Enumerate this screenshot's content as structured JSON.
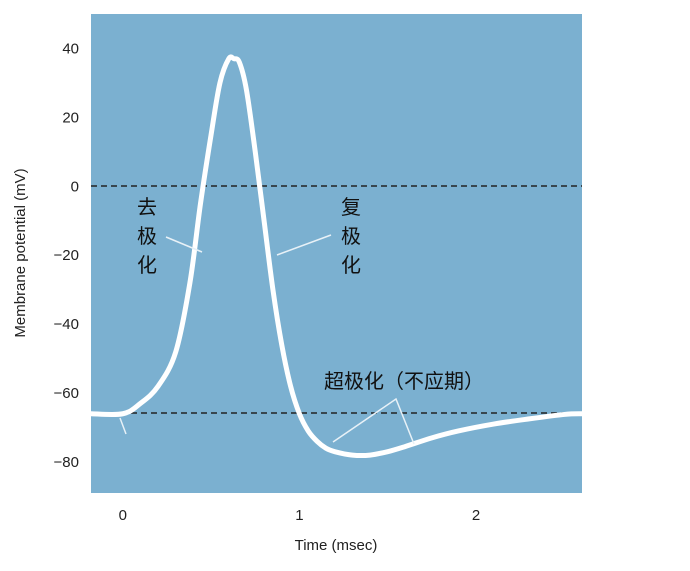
{
  "chart_data": {
    "type": "line",
    "xlabel": "Time (msec)",
    "ylabel": "Membrane potential (mV)",
    "xlim": [
      -0.18,
      2.6
    ],
    "ylim": [
      -89,
      50
    ],
    "x_ticks": [
      "0",
      "1",
      "2"
    ],
    "y_ticks": [
      "40",
      "20",
      "0",
      "−20",
      "−40",
      "−60",
      "−80"
    ],
    "reference_lines": [
      0,
      -66
    ],
    "plot_background": "#7bb0d0",
    "line_color": "#ffffff",
    "series": [
      {
        "x": [
          -0.18,
          0.0,
          0.1,
          0.2,
          0.3,
          0.38,
          0.44,
          0.5,
          0.55,
          0.6,
          0.63,
          0.66,
          0.7,
          0.75,
          0.8,
          0.85,
          0.9,
          0.95,
          1.0,
          1.05,
          1.1,
          1.15,
          1.2,
          1.3,
          1.4,
          1.5,
          1.6,
          1.75,
          1.9,
          2.1,
          2.3,
          2.5,
          2.6
        ],
        "values": [
          -66,
          -66,
          -63,
          -58,
          -48,
          -28,
          -5,
          15,
          30,
          37,
          37,
          36,
          28,
          10,
          -10,
          -30,
          -46,
          -58,
          -66,
          -71,
          -74,
          -76,
          -77,
          -78,
          -78,
          -77,
          -75.5,
          -73,
          -71,
          -69,
          -67.5,
          -66.2,
          -66
        ]
      }
    ],
    "annotations": [
      {
        "text": "去极化",
        "target_x": 0.45
      },
      {
        "text": "复极化",
        "target_x": 0.87
      },
      {
        "text": "超极化（不应期）",
        "target_x": [
          1.25,
          1.67
        ]
      }
    ]
  }
}
